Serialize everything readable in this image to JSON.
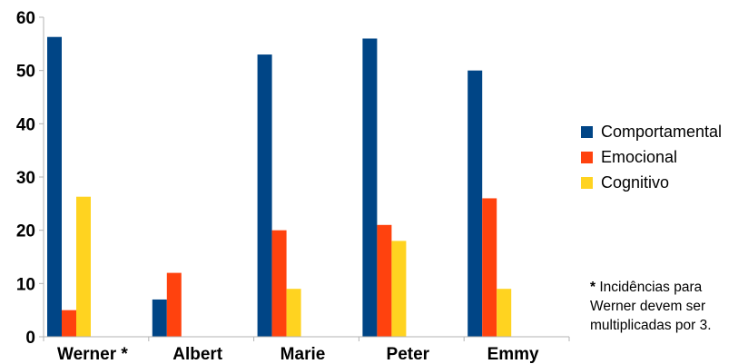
{
  "chart_data": {
    "type": "bar",
    "categories": [
      "Werner *",
      "Albert",
      "Marie",
      "Peter",
      "Emmy"
    ],
    "series": [
      {
        "name": "Comportamental",
        "color": "#004586",
        "values": [
          56.3,
          7,
          53,
          56,
          50
        ]
      },
      {
        "name": "Emocional",
        "color": "#ff420e",
        "values": [
          5,
          12,
          20,
          21,
          26
        ]
      },
      {
        "name": "Cognitivo",
        "color": "#ffd320",
        "values": [
          26.3,
          0,
          9,
          18,
          9
        ]
      }
    ],
    "ylim": [
      0,
      60
    ],
    "yticks": [
      0,
      10,
      20,
      30,
      40,
      50,
      60
    ],
    "grid": false,
    "legend": "right",
    "footnote": {
      "star": "*",
      "text": "Incidências para Werner devem ser multiplicadas por 3."
    }
  }
}
